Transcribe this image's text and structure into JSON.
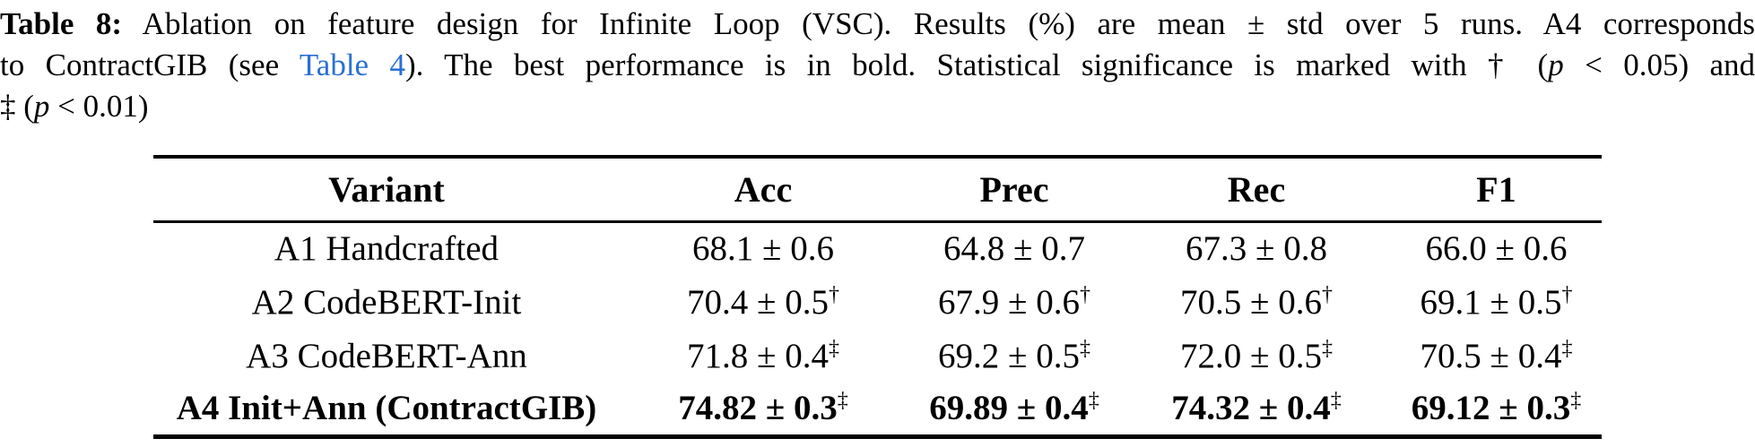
{
  "page": {
    "background": "#ffffff",
    "text_color": "#000000",
    "link_color": "#2b6fd4"
  },
  "caption": {
    "lines": [
      {
        "segments": [
          {
            "text": "Table 8:",
            "style": "bold"
          },
          {
            "text": " Ablation on feature design for Infinite Loop (VSC). Results (%) are mean ± std over 5 runs. A4 corresponds",
            "style": "normal"
          }
        ]
      },
      {
        "segments": [
          {
            "text": "to ContractGIB (see ",
            "style": "normal"
          },
          {
            "text": "Table 4",
            "style": "link"
          },
          {
            "text": "). The best performance is in bold. Statistical significance is marked with † (",
            "style": "normal"
          },
          {
            "text": "p",
            "style": "italic"
          },
          {
            "text": " < 0.05) and",
            "style": "normal"
          }
        ]
      },
      {
        "segments": [
          {
            "text": "‡ (",
            "style": "normal"
          },
          {
            "text": "p",
            "style": "italic"
          },
          {
            "text": " < 0.01)",
            "style": "normal"
          }
        ]
      }
    ]
  },
  "table": {
    "headers": [
      "Variant",
      "Acc",
      "Prec",
      "Rec",
      "F1"
    ],
    "rows": [
      {
        "variant": "A1 Handcrafted",
        "bold": false,
        "cells": [
          {
            "text": "68.1 ± 0.6",
            "sup": ""
          },
          {
            "text": "64.8 ± 0.7",
            "sup": ""
          },
          {
            "text": "67.3 ± 0.8",
            "sup": ""
          },
          {
            "text": "66.0 ± 0.6",
            "sup": ""
          }
        ]
      },
      {
        "variant": "A2 CodeBERT-Init",
        "bold": false,
        "cells": [
          {
            "text": "70.4 ± 0.5",
            "sup": "†"
          },
          {
            "text": "67.9 ± 0.6",
            "sup": "†"
          },
          {
            "text": "70.5 ± 0.6",
            "sup": "†"
          },
          {
            "text": "69.1 ± 0.5",
            "sup": "†"
          }
        ]
      },
      {
        "variant": "A3 CodeBERT-Ann",
        "bold": false,
        "cells": [
          {
            "text": "71.8 ± 0.4",
            "sup": "‡"
          },
          {
            "text": "69.2 ± 0.5",
            "sup": "‡"
          },
          {
            "text": "72.0 ± 0.5",
            "sup": "‡"
          },
          {
            "text": "70.5 ± 0.4",
            "sup": "‡"
          }
        ]
      },
      {
        "variant": "A4 Init+Ann (ContractGIB)",
        "bold": true,
        "cells": [
          {
            "text": "74.82 ± 0.3",
            "sup": "‡"
          },
          {
            "text": "69.89 ± 0.4",
            "sup": "‡"
          },
          {
            "text": "74.32 ± 0.4",
            "sup": "‡"
          },
          {
            "text": "69.12 ± 0.3",
            "sup": "‡"
          }
        ]
      }
    ]
  }
}
